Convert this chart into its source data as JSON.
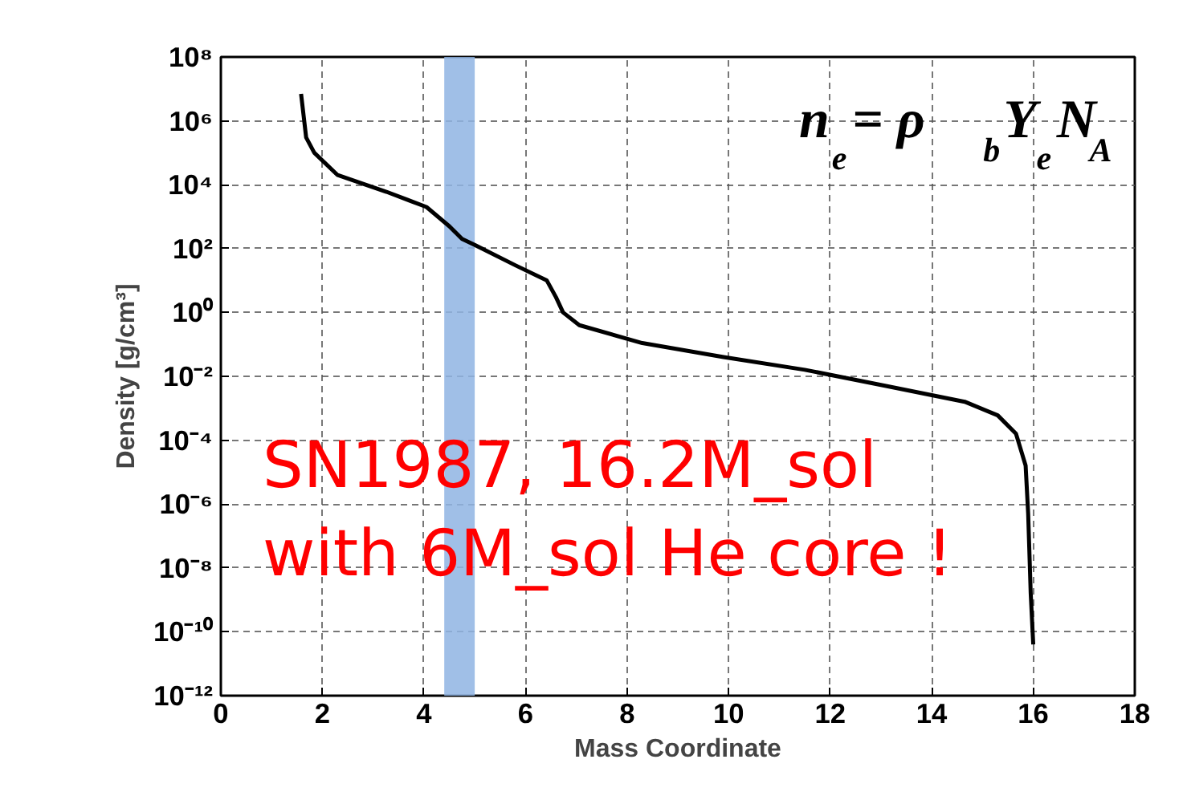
{
  "chart_data": {
    "type": "line",
    "xlabel": "Mass Coordinate",
    "ylabel": "Density [g/cm³]",
    "log": "y",
    "grid": true,
    "line_style": "dashed",
    "xlim": [
      0,
      18
    ],
    "xticks": [
      0,
      2,
      4,
      6,
      8,
      10,
      12,
      14,
      16,
      18
    ],
    "ylim": [
      1e-12,
      100000000.0
    ],
    "yticks": [
      {
        "value": 1e-12,
        "label": "10⁻¹²"
      },
      {
        "value": 1e-10,
        "label": "10⁻¹⁰"
      },
      {
        "value": 1e-08,
        "label": "10⁻⁸"
      },
      {
        "value": 1e-06,
        "label": "10⁻⁶"
      },
      {
        "value": 0.0001,
        "label": "10⁻⁴"
      },
      {
        "value": 0.01,
        "label": "10⁻²"
      },
      {
        "value": 1,
        "label": "10⁰"
      },
      {
        "value": 100,
        "label": "10²"
      },
      {
        "value": 10000,
        "label": "10⁴"
      },
      {
        "value": 1000000,
        "label": "10⁶"
      },
      {
        "value": 100000000,
        "label": "10⁸"
      }
    ],
    "series": [
      {
        "color": "#000000",
        "line_style": "solid",
        "x": [
          1.58,
          1.68,
          1.84,
          2.3,
          3.26,
          4.05,
          4.5,
          4.75,
          5.0,
          5.8,
          6.42,
          6.6,
          6.74,
          7.06,
          8.3,
          9.9,
          11.5,
          13.1,
          14.65,
          15.3,
          15.66,
          15.85,
          15.9,
          15.95,
          16.0
        ],
        "values": [
          7000000.0,
          300000.0,
          100000.0,
          20000.0,
          6000.0,
          2000.0,
          500,
          200,
          130,
          30,
          10,
          3,
          1,
          0.4,
          0.11,
          0.04,
          0.016,
          0.005,
          0.0016,
          0.0006,
          0.00016,
          1.6e-05,
          5e-07,
          1.6e-09,
          4e-11
        ]
      }
    ],
    "bands": [
      {
        "axis": "x",
        "from": 4.4,
        "to": 5.0,
        "color": "#8fb4e3"
      }
    ],
    "annotations": [
      "n$_{e}$ = ρ$_{b}$Y$_{e}$N$_{A}$",
      "SN1987, 16.2M_sol",
      "with 6M_sol He core !"
    ]
  }
}
